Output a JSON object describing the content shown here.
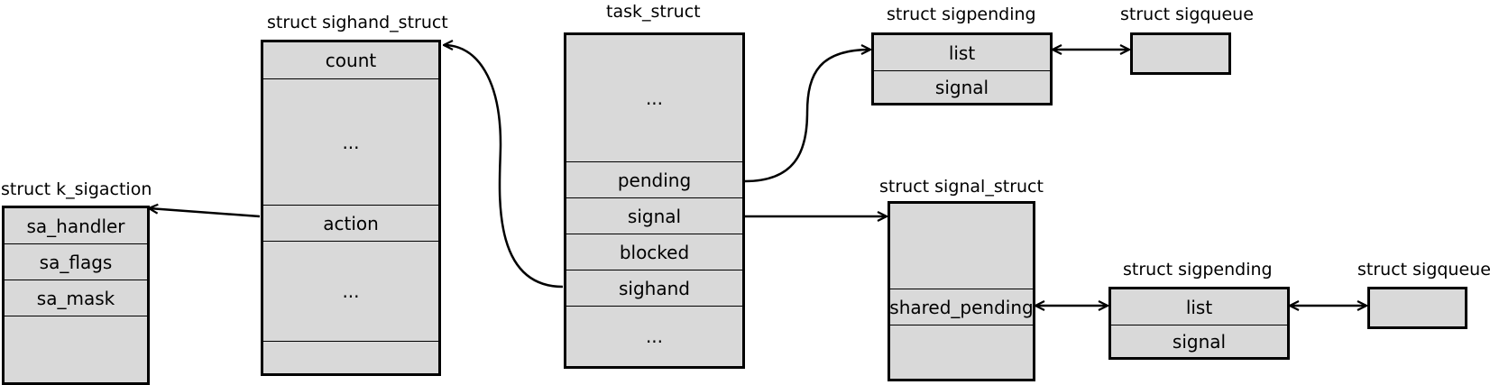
{
  "title_task": "task_struct",
  "task_fields": [
    "...",
    "pending",
    "signal",
    "blocked",
    "sighand",
    "..."
  ],
  "title_sighand": "struct sighand_struct",
  "sighand_fields": [
    "count",
    "...",
    "action",
    "...",
    ""
  ],
  "title_k_sigaction": "struct k_sigaction",
  "k_sigaction_fields": [
    "sa_handler",
    "sa_flags",
    "sa_mask",
    ""
  ],
  "title_sigpending_top": "struct sigpending",
  "sigpending_top_fields": [
    "list",
    "signal"
  ],
  "title_sigqueue_top": "struct sigqueue",
  "title_signal_struct": "struct signal_struct",
  "signal_struct_fields": [
    "",
    "shared_pending",
    ""
  ],
  "title_sigpending_bottom": "struct sigpending",
  "sigpending_bottom_fields": [
    "list",
    "signal"
  ],
  "title_sigqueue_bottom": "struct sigqueue",
  "colors": {
    "box_fill": "#d9d9d9",
    "stroke": "#000000"
  }
}
